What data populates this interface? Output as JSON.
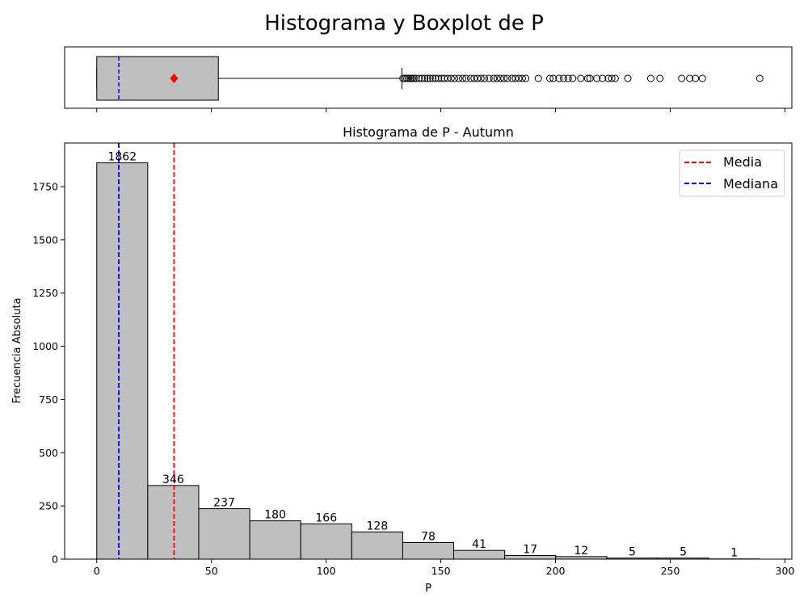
{
  "figure": {
    "suptitle": "Histograma y Boxplot de P"
  },
  "chart_data": [
    {
      "type": "box",
      "orientation": "horizontal",
      "whisker_low": 0,
      "q1": 0,
      "median": 9.6,
      "mean": 33.7,
      "q3": 53,
      "whisker_high": 133,
      "xlim": [
        -14,
        303
      ],
      "outliers": [
        133.5,
        134.5,
        135.2,
        136,
        136.8,
        137.5,
        138.3,
        139.2,
        140.5,
        141.8,
        143,
        144.2,
        145.3,
        146.5,
        147.7,
        149,
        150.3,
        151.5,
        153,
        154.5,
        156,
        157.8,
        159.5,
        161,
        163,
        164.5,
        166,
        167.5,
        169,
        171,
        173,
        174.5,
        176,
        177.5,
        179,
        181,
        182.5,
        184,
        185.5,
        187,
        192.5,
        197.5,
        199,
        201.5,
        203.5,
        205.5,
        207.5,
        211,
        214,
        215,
        218,
        220.5,
        223,
        224.5,
        226,
        231.5,
        241.5,
        245.5,
        255,
        258.5,
        261,
        264,
        289
      ],
      "colors": {
        "box": "#bfbfbf",
        "median": "#0000ff",
        "mean_marker": "#ff0000"
      }
    },
    {
      "type": "bar",
      "title": "Histograma de P - Autumn",
      "xlabel": "P",
      "ylabel": "Frecuencia Absoluta",
      "xlim": [
        -14,
        303
      ],
      "ylim": [
        0,
        1955
      ],
      "x_ticks": [
        0,
        50,
        100,
        150,
        200,
        250,
        300
      ],
      "y_ticks": [
        0,
        250,
        500,
        750,
        1000,
        1250,
        1500,
        1750
      ],
      "bin_edges": [
        0,
        22.23,
        44.46,
        66.69,
        88.92,
        111.15,
        133.38,
        155.61,
        177.84,
        200.07,
        222.3,
        244.53,
        266.76,
        289
      ],
      "values": [
        1862,
        346,
        237,
        180,
        166,
        128,
        78,
        41,
        17,
        12,
        5,
        5,
        1
      ],
      "mean": 33.7,
      "median": 9.6,
      "legend": [
        {
          "label": "Media",
          "color": "#ff0000"
        },
        {
          "label": "Mediana",
          "color": "#0000ff"
        }
      ],
      "legend_position": "top-right",
      "bar_color": "#bfbfbf"
    }
  ]
}
